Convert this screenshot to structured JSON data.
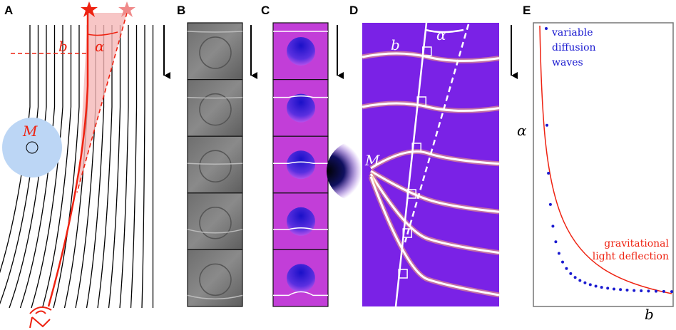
{
  "panels": [
    {
      "letter": "A",
      "labels": [
        "b",
        "α",
        "M"
      ]
    },
    {
      "letter": "B"
    },
    {
      "letter": "C"
    },
    {
      "letter": "D",
      "labels": [
        "b",
        "α",
        "M"
      ]
    },
    {
      "letter": "E",
      "legend": [
        "variable",
        "diffusion",
        "waves",
        "gravitational",
        "light deflection"
      ],
      "axes": [
        "α",
        "b"
      ]
    }
  ]
}
